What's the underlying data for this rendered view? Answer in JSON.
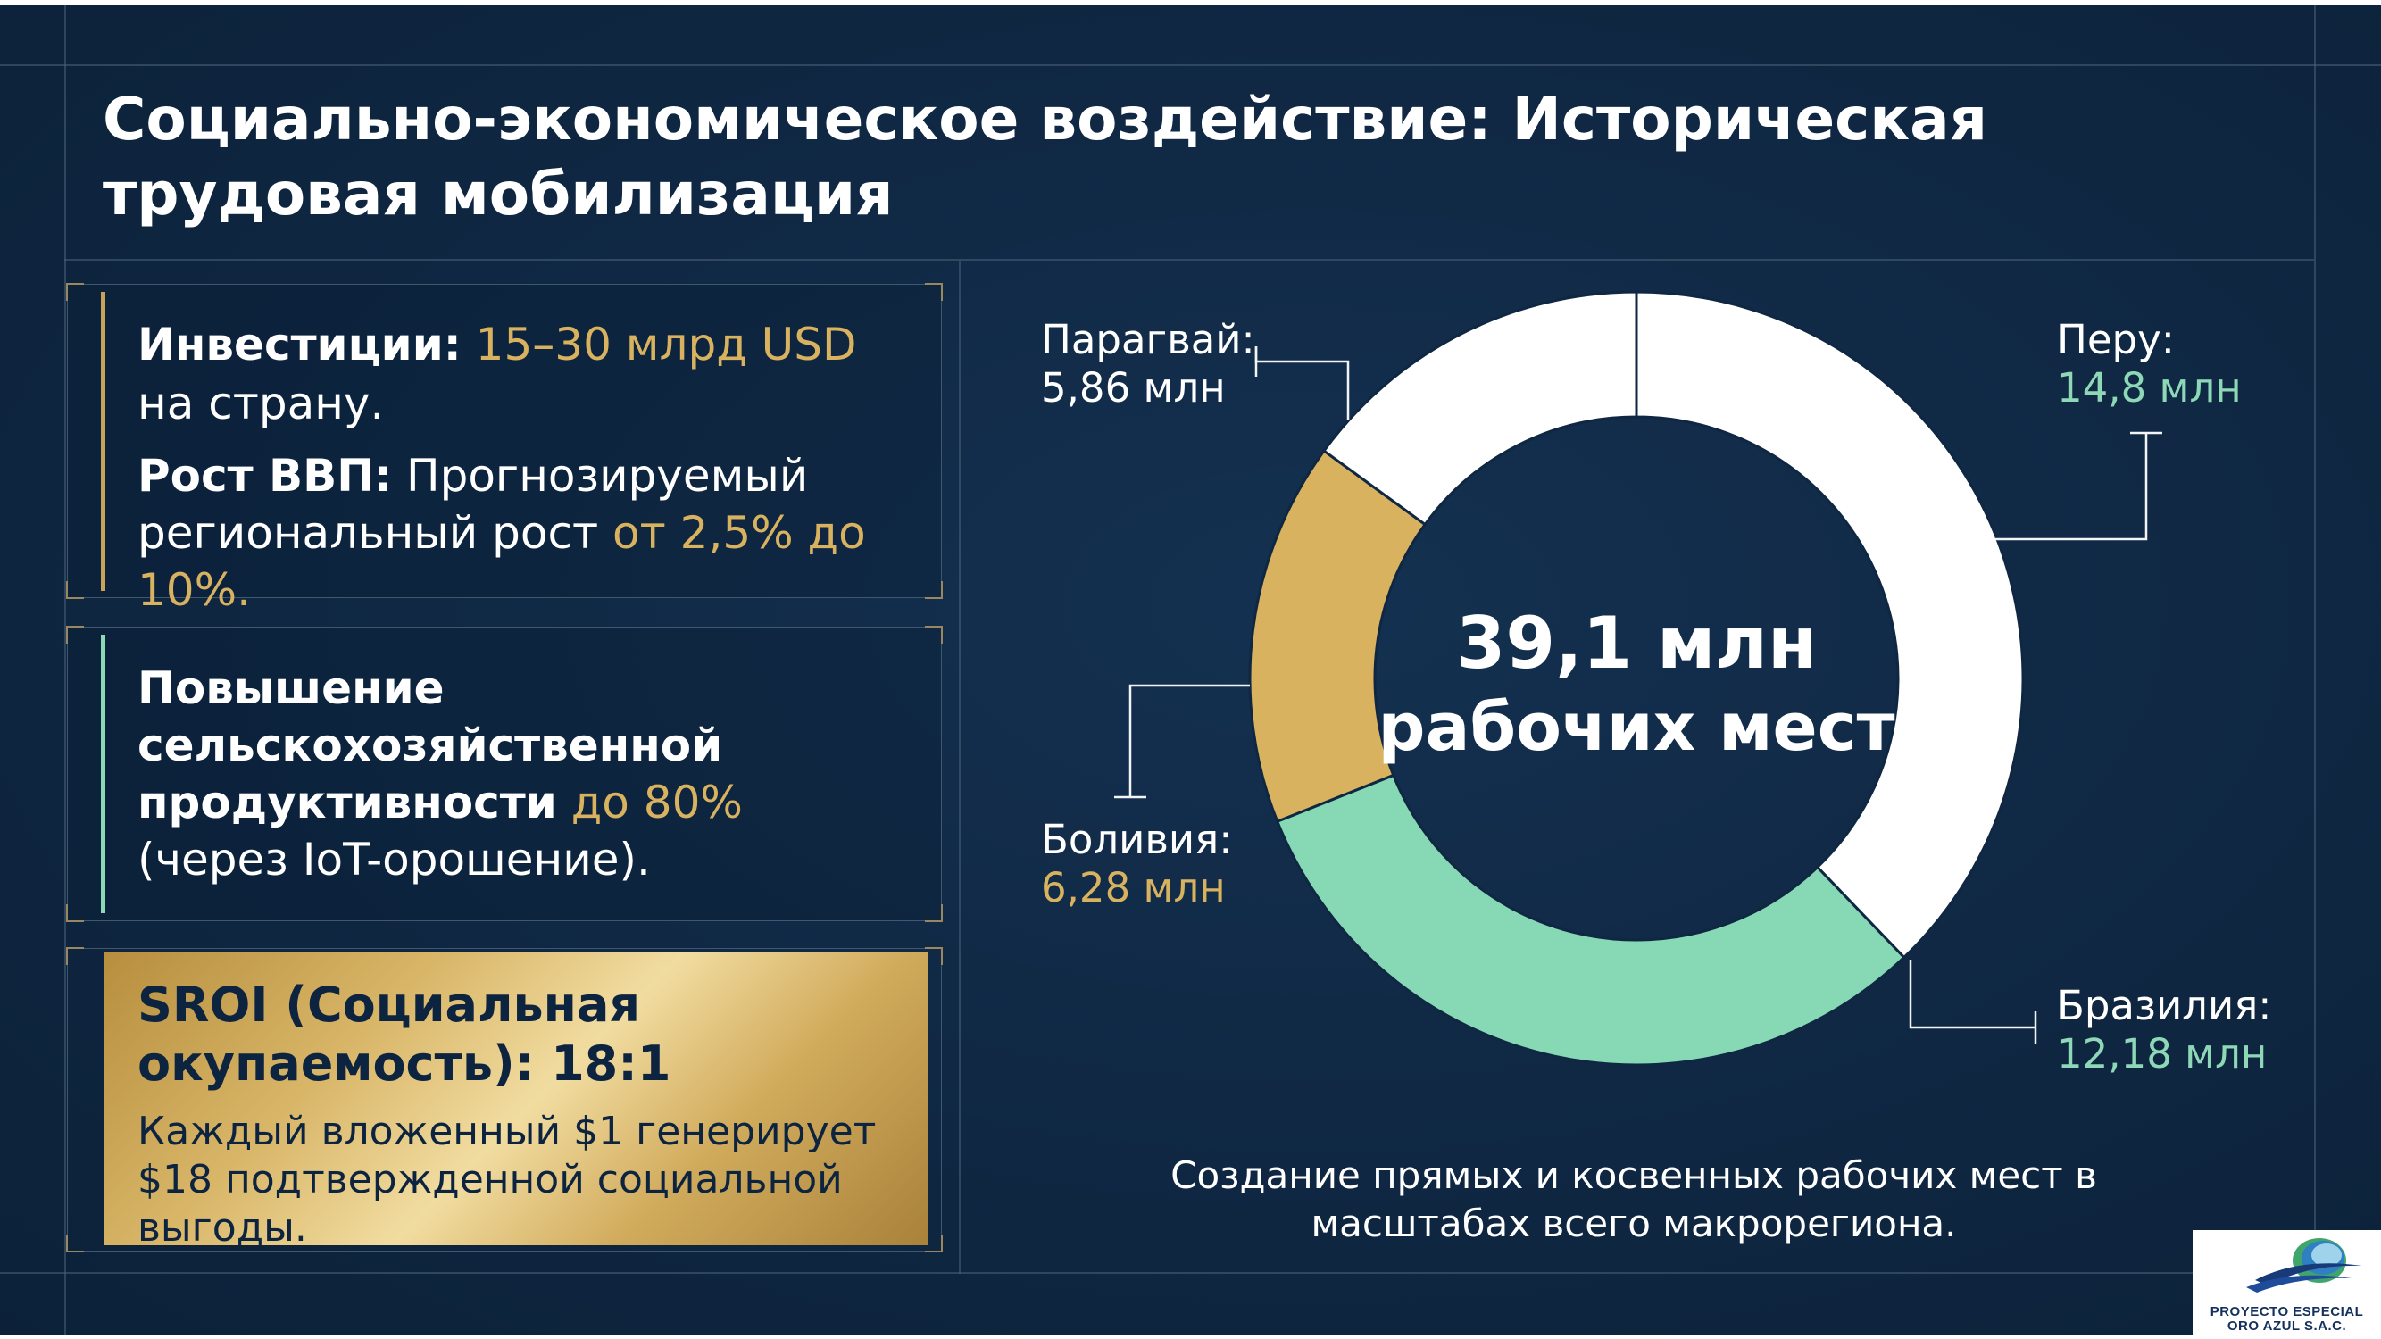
{
  "title": "Социально-экономическое воздействие: Историческая трудовая мобилизация",
  "investment": {
    "label": "Инвестиции:",
    "value": "15–30 млрд USD",
    "suffix": "на страну."
  },
  "gdp": {
    "label": "Рост ВВП:",
    "text": "Прогнозируемый региональный рост",
    "highlight": "от 2,5% до 10%."
  },
  "productivity": {
    "text": "Повышение сельскохозяйственной продуктивности",
    "highlight": "до 80%",
    "suffix": "(через IoT-орошение)."
  },
  "sroi": {
    "title": "SROI (Социальная окупаемость): 18:1",
    "text": "Каждый вложенный $1 генерирует $18 подтвержденной социальной выгоды."
  },
  "donut": {
    "center_line1": "39,1 млн",
    "center_line2": "рабочих мест"
  },
  "chart_data": {
    "type": "pie",
    "categories": [
      "Перу:",
      "Бразилия:",
      "Боливия:",
      "Парагвай:"
    ],
    "values": [
      14.8,
      12.18,
      6.28,
      5.86
    ],
    "value_labels": [
      "14,8 млн",
      "12,18 млн",
      "6,28 млн",
      "5,86 млн"
    ],
    "colors": [
      "#ffffff",
      "#86d9b4",
      "#d8b25f",
      "#ffffff"
    ],
    "total_label": "39,1 млн рабочих мест",
    "title": "",
    "legend": "none"
  },
  "caption": "Создание прямых и косвенных рабочих мест в масштабах всего макрорегиона.",
  "logo": {
    "line1": "PROYECTO ESPECIAL",
    "line2": "ORO AZUL S.A.C."
  },
  "colors": {
    "background": "#0f2742",
    "gold": "#d8b25f",
    "teal": "#86d9b4",
    "white": "#ffffff"
  }
}
